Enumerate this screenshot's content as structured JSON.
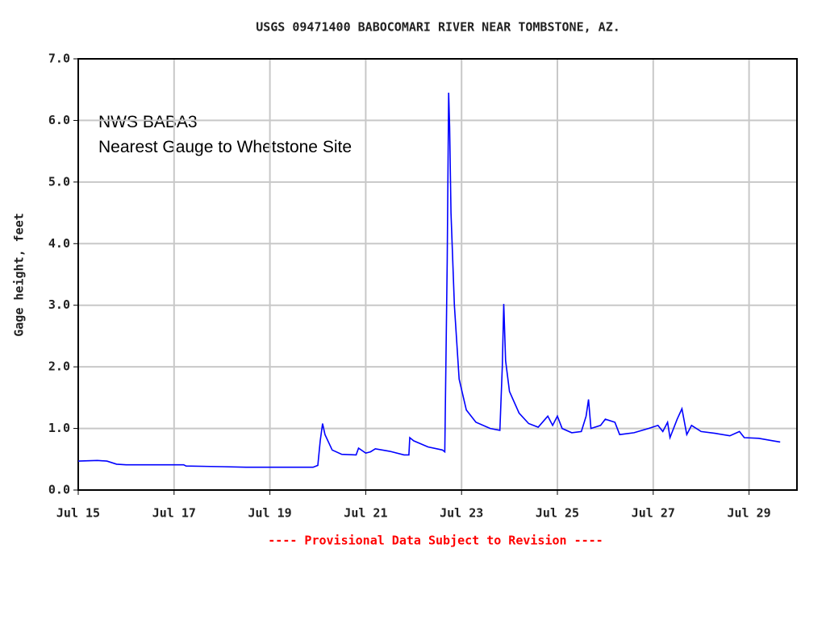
{
  "chart_data": {
    "type": "line",
    "title": "USGS 09471400 BABOCOMARI RIVER NEAR TOMBSTONE, AZ.",
    "ylabel": "Gage height, feet",
    "footnote": "---- Provisional Data Subject to Revision ----",
    "annotations": [
      "NWS BABA3",
      "Nearest Gauge to Whetstone Site"
    ],
    "xlim": [
      15,
      30
    ],
    "xticks": [
      {
        "value": 15,
        "label": "Jul 15"
      },
      {
        "value": 17,
        "label": "Jul 17"
      },
      {
        "value": 19,
        "label": "Jul 19"
      },
      {
        "value": 21,
        "label": "Jul 21"
      },
      {
        "value": 23,
        "label": "Jul 23"
      },
      {
        "value": 25,
        "label": "Jul 25"
      },
      {
        "value": 27,
        "label": "Jul 27"
      },
      {
        "value": 29,
        "label": "Jul 29"
      }
    ],
    "ylim": [
      0,
      7
    ],
    "yticks": [
      {
        "value": 0,
        "label": "0.0"
      },
      {
        "value": 1,
        "label": "1.0"
      },
      {
        "value": 2,
        "label": "2.0"
      },
      {
        "value": 3,
        "label": "3.0"
      },
      {
        "value": 4,
        "label": "4.0"
      },
      {
        "value": 5,
        "label": "5.0"
      },
      {
        "value": 6,
        "label": "6.0"
      },
      {
        "value": 7,
        "label": "7.0"
      }
    ],
    "grid": true,
    "color": "#0000ff",
    "x": [
      15.0,
      15.4,
      15.6,
      15.8,
      16.0,
      17.0,
      17.2,
      17.25,
      18.0,
      18.5,
      19.0,
      19.5,
      19.9,
      20.0,
      20.05,
      20.1,
      20.15,
      20.3,
      20.5,
      20.8,
      20.85,
      21.0,
      21.1,
      21.2,
      21.5,
      21.8,
      21.9,
      21.92,
      22.0,
      22.3,
      22.6,
      22.65,
      22.7,
      22.73,
      22.75,
      22.78,
      22.85,
      22.95,
      23.1,
      23.3,
      23.6,
      23.8,
      23.85,
      23.88,
      23.92,
      24.0,
      24.2,
      24.4,
      24.6,
      24.8,
      24.9,
      25.0,
      25.1,
      25.3,
      25.5,
      25.6,
      25.65,
      25.7,
      25.9,
      26.0,
      26.2,
      26.3,
      26.6,
      26.9,
      27.1,
      27.2,
      27.3,
      27.35,
      27.5,
      27.6,
      27.7,
      27.8,
      28.0,
      28.3,
      28.6,
      28.8,
      28.9,
      29.2,
      29.5,
      29.65
    ],
    "values": [
      0.47,
      0.48,
      0.47,
      0.42,
      0.41,
      0.41,
      0.41,
      0.39,
      0.38,
      0.37,
      0.37,
      0.37,
      0.37,
      0.4,
      0.8,
      1.08,
      0.9,
      0.65,
      0.58,
      0.57,
      0.68,
      0.6,
      0.62,
      0.67,
      0.63,
      0.57,
      0.57,
      0.85,
      0.8,
      0.7,
      0.65,
      0.62,
      3.7,
      6.45,
      5.9,
      4.5,
      3.0,
      1.8,
      1.3,
      1.1,
      1.0,
      0.97,
      2.0,
      3.02,
      2.1,
      1.6,
      1.25,
      1.08,
      1.02,
      1.2,
      1.05,
      1.2,
      1.0,
      0.93,
      0.95,
      1.2,
      1.47,
      1.0,
      1.05,
      1.15,
      1.1,
      0.9,
      0.93,
      1.0,
      1.05,
      0.95,
      1.1,
      0.85,
      1.15,
      1.32,
      0.9,
      1.05,
      0.95,
      0.92,
      0.88,
      0.95,
      0.85,
      0.84,
      0.8,
      0.78
    ]
  }
}
